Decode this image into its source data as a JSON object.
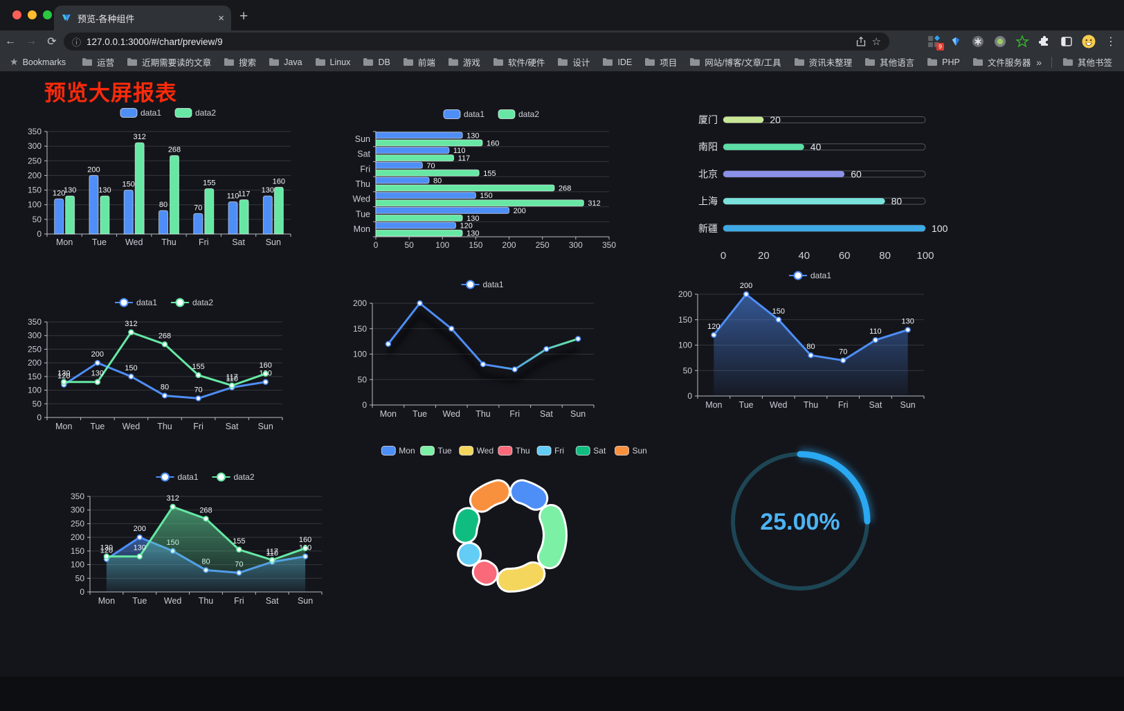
{
  "browser": {
    "tab_title": "预览-各种组件",
    "url": "127.0.0.1:3000/#/chart/preview/9",
    "extension_badge": "9",
    "icons": {
      "back": "←",
      "forward": "→",
      "reload": "⟳",
      "home": "⌂",
      "info": "ⓘ",
      "star": "☆",
      "close": "×",
      "new_tab": "+",
      "menu": "⋮",
      "bookmarks_star": "★"
    },
    "bookmarks_label": "Bookmarks",
    "bookmarks": [
      "运营",
      "近期需要读的文章",
      "搜索",
      "Java",
      "Linux",
      "DB",
      "前端",
      "游戏",
      "软件/硬件",
      "设计",
      "IDE",
      "项目",
      "网站/博客/文章/工具",
      "资讯未整理",
      "其他语言",
      "PHP",
      "文件服务器"
    ],
    "bookmarks_overflow": "»",
    "other_bookmarks": "其他书签"
  },
  "page": {
    "title": "预览大屏报表",
    "title_color": "#fd2a0a",
    "background": "#14151b"
  },
  "chart_data": [
    {
      "id": "bar-grouped",
      "type": "bar",
      "categories": [
        "Mon",
        "Tue",
        "Wed",
        "Thu",
        "Fri",
        "Sat",
        "Sun"
      ],
      "series": [
        {
          "name": "data1",
          "color": "#4e8ef7",
          "values": [
            120,
            200,
            150,
            80,
            70,
            110,
            130
          ]
        },
        {
          "name": "data2",
          "color": "#66e8a4",
          "values": [
            130,
            130,
            312,
            268,
            155,
            117,
            160
          ]
        }
      ],
      "ylim": [
        0,
        350
      ],
      "yticks": [
        0,
        50,
        100,
        150,
        200,
        250,
        300,
        350
      ],
      "legend_position": "top",
      "grid": true,
      "show_labels": true
    },
    {
      "id": "bar-horizontal",
      "type": "bar-horizontal",
      "categories": [
        "Mon",
        "Tue",
        "Wed",
        "Thu",
        "Fri",
        "Sat",
        "Sun"
      ],
      "series": [
        {
          "name": "data1",
          "color": "#4e8ef7",
          "values": [
            120,
            200,
            150,
            80,
            70,
            110,
            130
          ]
        },
        {
          "name": "data2",
          "color": "#66e8a4",
          "values": [
            130,
            130,
            312,
            268,
            155,
            117,
            160
          ]
        }
      ],
      "xlim": [
        0,
        350
      ],
      "xticks": [
        0,
        50,
        100,
        150,
        200,
        250,
        300,
        350
      ],
      "legend_position": "top",
      "grid": true,
      "show_labels": true
    },
    {
      "id": "progress-list",
      "type": "progress",
      "max": 100,
      "xticks": [
        0,
        20,
        40,
        60,
        80,
        100
      ],
      "items": [
        {
          "label": "厦门",
          "value": 20,
          "color": "#c9e796"
        },
        {
          "label": "南阳",
          "value": 40,
          "color": "#5cdda5"
        },
        {
          "label": "北京",
          "value": 60,
          "color": "#8b90e8"
        },
        {
          "label": "上海",
          "value": 80,
          "color": "#7ae2db"
        },
        {
          "label": "新疆",
          "value": 100,
          "color": "#3ea9e5"
        }
      ]
    },
    {
      "id": "line-two",
      "type": "line",
      "categories": [
        "Mon",
        "Tue",
        "Wed",
        "Thu",
        "Fri",
        "Sat",
        "Sun"
      ],
      "series": [
        {
          "name": "data1",
          "color": "#4e8ef7",
          "values": [
            120,
            200,
            150,
            80,
            70,
            110,
            130
          ]
        },
        {
          "name": "data2",
          "color": "#66e8a4",
          "values": [
            130,
            130,
            312,
            268,
            155,
            117,
            160
          ]
        }
      ],
      "ylim": [
        0,
        350
      ],
      "yticks": [
        0,
        50,
        100,
        150,
        200,
        250,
        300,
        350
      ],
      "show_labels": true,
      "legend_position": "top"
    },
    {
      "id": "line-gradient",
      "type": "line",
      "categories": [
        "Mon",
        "Tue",
        "Wed",
        "Thu",
        "Fri",
        "Sat",
        "Sun"
      ],
      "series": [
        {
          "name": "data1",
          "color": "#4e8ef7",
          "gradient": [
            "#4e8ef7",
            "#66e8a4"
          ],
          "values": [
            120,
            200,
            150,
            80,
            70,
            110,
            130
          ]
        }
      ],
      "ylim": [
        0,
        200
      ],
      "yticks": [
        0,
        50,
        100,
        150,
        200
      ],
      "show_labels": false,
      "shadow": true,
      "legend_position": "top"
    },
    {
      "id": "line-area",
      "type": "line",
      "categories": [
        "Mon",
        "Tue",
        "Wed",
        "Thu",
        "Fri",
        "Sat",
        "Sun"
      ],
      "series": [
        {
          "name": "data1",
          "color": "#4e8ef7",
          "area": true,
          "values": [
            120,
            200,
            150,
            80,
            70,
            110,
            130
          ]
        }
      ],
      "ylim": [
        0,
        200
      ],
      "yticks": [
        0,
        50,
        100,
        150,
        200
      ],
      "show_labels": true,
      "legend_position": "top"
    },
    {
      "id": "line-two-area",
      "type": "line",
      "categories": [
        "Mon",
        "Tue",
        "Wed",
        "Thu",
        "Fri",
        "Sat",
        "Sun"
      ],
      "series": [
        {
          "name": "data1",
          "color": "#4e8ef7",
          "area": true,
          "values": [
            120,
            200,
            150,
            80,
            70,
            110,
            130
          ]
        },
        {
          "name": "data2",
          "color": "#66e8a4",
          "area": true,
          "values": [
            130,
            130,
            312,
            268,
            155,
            117,
            160
          ]
        }
      ],
      "ylim": [
        0,
        350
      ],
      "yticks": [
        0,
        50,
        100,
        150,
        200,
        250,
        300,
        350
      ],
      "show_labels": true,
      "legend_position": "top"
    },
    {
      "id": "donut",
      "type": "pie",
      "labels": [
        "Mon",
        "Tue",
        "Wed",
        "Thu",
        "Fri",
        "Sat",
        "Sun"
      ],
      "values": [
        120,
        200,
        150,
        80,
        70,
        110,
        130
      ],
      "colors": [
        "#4e8ef7",
        "#7cf0a5",
        "#f5d65c",
        "#f9697a",
        "#63cdf6",
        "#10bd80",
        "#f9903e"
      ],
      "inner_radius_ratio": 0.6,
      "rounded_segments": true,
      "legend_position": "top"
    },
    {
      "id": "gauge-ring",
      "type": "gauge",
      "percent": 25,
      "text": "25.00%",
      "color": "#2aa9f2",
      "track_color": "#1d4654",
      "text_color": "#4db4f4"
    }
  ]
}
